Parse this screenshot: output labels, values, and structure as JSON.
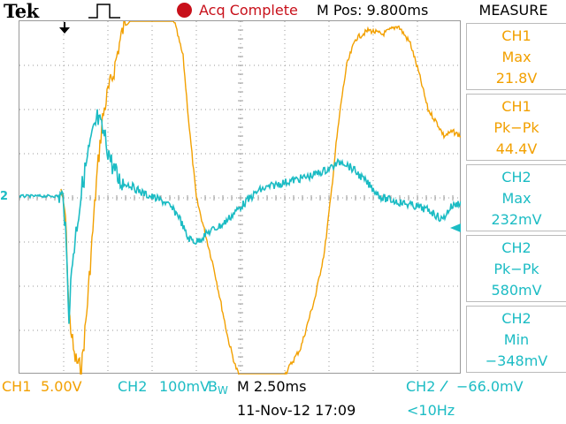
{
  "header": {
    "brand": "Tek",
    "trigger_icon": "pulse-icon",
    "acq_status": "Acq Complete",
    "mpos": "M Pos: 9.800ms"
  },
  "colors": {
    "ch1": "#f2a000",
    "ch2": "#1cbcc4",
    "acq": "#c8101a"
  },
  "markers": {
    "ch2_label": "2"
  },
  "measure": {
    "title": "MEASURE",
    "items": [
      {
        "channel": "CH1",
        "type": "Max",
        "value": "21.8V"
      },
      {
        "channel": "CH1",
        "type": "Pk−Pk",
        "value": "44.4V"
      },
      {
        "channel": "CH2",
        "type": "Max",
        "value": "232mV"
      },
      {
        "channel": "CH2",
        "type": "Pk−Pk",
        "value": "580mV"
      },
      {
        "channel": "CH2",
        "type": "Min",
        "value": "−348mV"
      }
    ]
  },
  "status": {
    "ch1_label": "CH1",
    "ch1_scale": "5.00V",
    "ch2_label": "CH2",
    "ch2_scale": "100mV",
    "bw_mark": "B",
    "bw_sub": "W",
    "timebase": "M 2.50ms",
    "trigger_source": "CH2",
    "trigger_level": "−66.0mV",
    "date": "11-Nov-12 17:09",
    "trigger_freq": "<10Hz"
  }
}
